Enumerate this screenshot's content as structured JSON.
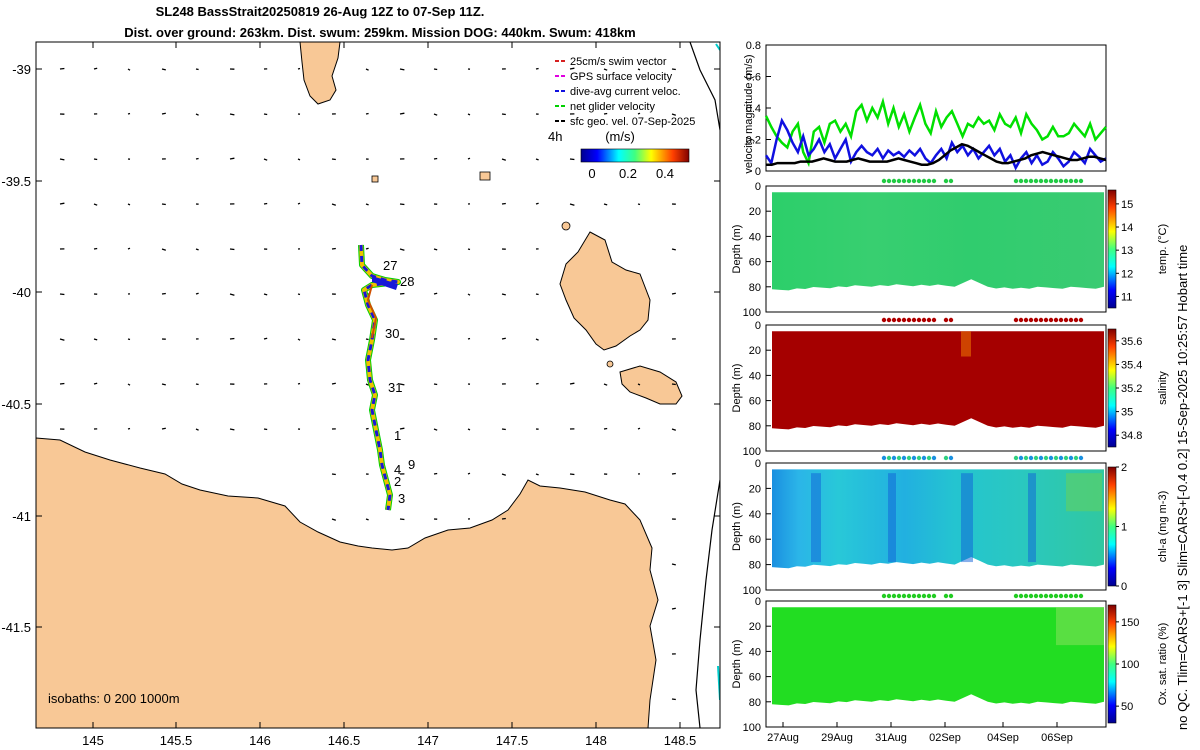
{
  "title": {
    "line1": "SL248 BassStrait20250819 26-Aug 12Z to 07-Sep 11Z.",
    "line2": "Dist. over ground: 263km. Dist. swum: 259km. Mission DOG: 440km. Swum: 418km"
  },
  "map": {
    "lon_ticks": [
      "145",
      "145.5",
      "146",
      "146.5",
      "147",
      "147.5",
      "148",
      "148.5"
    ],
    "lat_ticks": [
      "-39",
      "-39.5",
      "-40",
      "-40.5",
      "-41",
      "-41.5"
    ],
    "legend": [
      {
        "label": "25cm/s swim vector",
        "color": "#d62020"
      },
      {
        "label": "GPS surface velocity",
        "color": "#e000e0"
      },
      {
        "label": "dive-avg current veloc.",
        "color": "#1010e0"
      },
      {
        "label": "net glider velocity",
        "color": "#00d000"
      },
      {
        "label": "sfc geo. vel. 07-Sep-2025",
        "color": "#000000"
      }
    ],
    "scale_label": "4h",
    "colorbar_title": "(m/s)",
    "colorbar_ticks": [
      "0",
      "0.2",
      "0.4"
    ],
    "isobaths_label": "isobaths: 0   200  1000m",
    "day_labels": [
      "27",
      "28",
      "30",
      "31",
      "1",
      "9",
      "4",
      "2",
      "3"
    ],
    "colors": {
      "land": "#f8c896",
      "track": "#1818d8"
    }
  },
  "side_label": "no QC. Tlim=CARS+[-1 3] Slim=CARS+[-0.4 0.2] 15-Sep-2025 10:25:57 Hobart time",
  "chart_data": [
    {
      "type": "line",
      "title": "",
      "ylabel": "velocity magnitude (m/s)",
      "ylim": [
        0,
        0.8
      ],
      "yticks": [
        "0",
        "0.2",
        "0.4",
        "0.6",
        "0.8"
      ],
      "series": [
        {
          "name": "net glider velocity",
          "color": "#00e000",
          "values": [
            0.35,
            0.28,
            0.22,
            0.18,
            0.15,
            0.25,
            0.3,
            0.12,
            0.05,
            0.25,
            0.28,
            0.18,
            0.3,
            0.32,
            0.25,
            0.3,
            0.22,
            0.38,
            0.42,
            0.32,
            0.4,
            0.34,
            0.44,
            0.3,
            0.4,
            0.28,
            0.36,
            0.25,
            0.34,
            0.42,
            0.3,
            0.24,
            0.38,
            0.28,
            0.34,
            0.38,
            0.3,
            0.22,
            0.3,
            0.28,
            0.34,
            0.3,
            0.32,
            0.26,
            0.36,
            0.3,
            0.28,
            0.34,
            0.24,
            0.36,
            0.3,
            0.26,
            0.2,
            0.22,
            0.28,
            0.22,
            0.22,
            0.24,
            0.3,
            0.26,
            0.22,
            0.3,
            0.2,
            0.24,
            0.28
          ]
        },
        {
          "name": "dive-avg current veloc.",
          "color": "#1010e0",
          "values": [
            0.1,
            0.05,
            0.2,
            0.32,
            0.26,
            0.18,
            0.12,
            0.22,
            0.1,
            0.14,
            0.2,
            0.12,
            0.17,
            0.08,
            0.14,
            0.2,
            0.06,
            0.12,
            0.16,
            0.12,
            0.1,
            0.14,
            0.08,
            0.13,
            0.1,
            0.12,
            0.09,
            0.13,
            0.1,
            0.14,
            0.08,
            0.05,
            0.1,
            0.14,
            0.08,
            0.18,
            0.12,
            0.16,
            0.1,
            0.14,
            0.08,
            0.12,
            0.16,
            0.1,
            0.14,
            0.06,
            0.1,
            0.02,
            0.08,
            0.12,
            0.05,
            0.1,
            0.04,
            0.06,
            0.12,
            0.08,
            0.03,
            0.06,
            0.12,
            0.09,
            0.05,
            0.14,
            0.1,
            0.06,
            0.08
          ]
        },
        {
          "name": "sfc geo. vel.",
          "color": "#000000",
          "values": [
            0.04,
            0.04,
            0.05,
            0.05,
            0.05,
            0.05,
            0.06,
            0.06,
            0.06,
            0.07,
            0.08,
            0.07,
            0.06,
            0.06,
            0.06,
            0.07,
            0.08,
            0.07,
            0.06,
            0.06,
            0.06,
            0.06,
            0.07,
            0.08,
            0.07,
            0.06,
            0.05,
            0.04,
            0.04,
            0.05,
            0.07,
            0.1,
            0.13,
            0.15,
            0.17,
            0.16,
            0.14,
            0.12,
            0.1,
            0.08,
            0.06,
            0.05,
            0.05,
            0.06,
            0.07,
            0.08,
            0.1,
            0.11,
            0.12,
            0.11,
            0.1,
            0.09,
            0.08,
            0.07,
            0.07,
            0.08,
            0.09,
            0.09,
            0.08,
            0.07
          ]
        }
      ]
    },
    {
      "type": "heatmap",
      "ylabel": "Depth (m)",
      "yticks": [
        "0",
        "20",
        "40",
        "60",
        "80",
        "100"
      ],
      "colorbar_label": "temp. (°C)",
      "colorbar_ticks": [
        "11",
        "12",
        "13",
        "14",
        "15"
      ],
      "colorbar_range": [
        10.5,
        15.6
      ]
    },
    {
      "type": "heatmap",
      "ylabel": "Depth (m)",
      "yticks": [
        "0",
        "20",
        "40",
        "60",
        "80",
        "100"
      ],
      "colorbar_label": "salinity",
      "colorbar_ticks": [
        "34.8",
        "35",
        "35.2",
        "35.4",
        "35.6"
      ],
      "colorbar_range": [
        34.7,
        35.7
      ]
    },
    {
      "type": "heatmap",
      "ylabel": "Depth (m)",
      "yticks": [
        "0",
        "20",
        "40",
        "60",
        "80",
        "100"
      ],
      "colorbar_label": "chl-a (mg m-3)",
      "colorbar_ticks": [
        "0",
        "1",
        "2"
      ],
      "colorbar_range": [
        0,
        2
      ]
    },
    {
      "type": "heatmap",
      "ylabel": "Depth (m)",
      "yticks": [
        "0",
        "20",
        "40",
        "60",
        "80",
        "100"
      ],
      "colorbar_label": "Ox. sat. ratio (%)",
      "colorbar_ticks": [
        "50",
        "100",
        "150"
      ],
      "colorbar_range": [
        30,
        170
      ],
      "xticks": [
        "27Aug",
        "29Aug",
        "31Aug",
        "02Sep",
        "04Sep",
        "06Sep"
      ]
    }
  ]
}
